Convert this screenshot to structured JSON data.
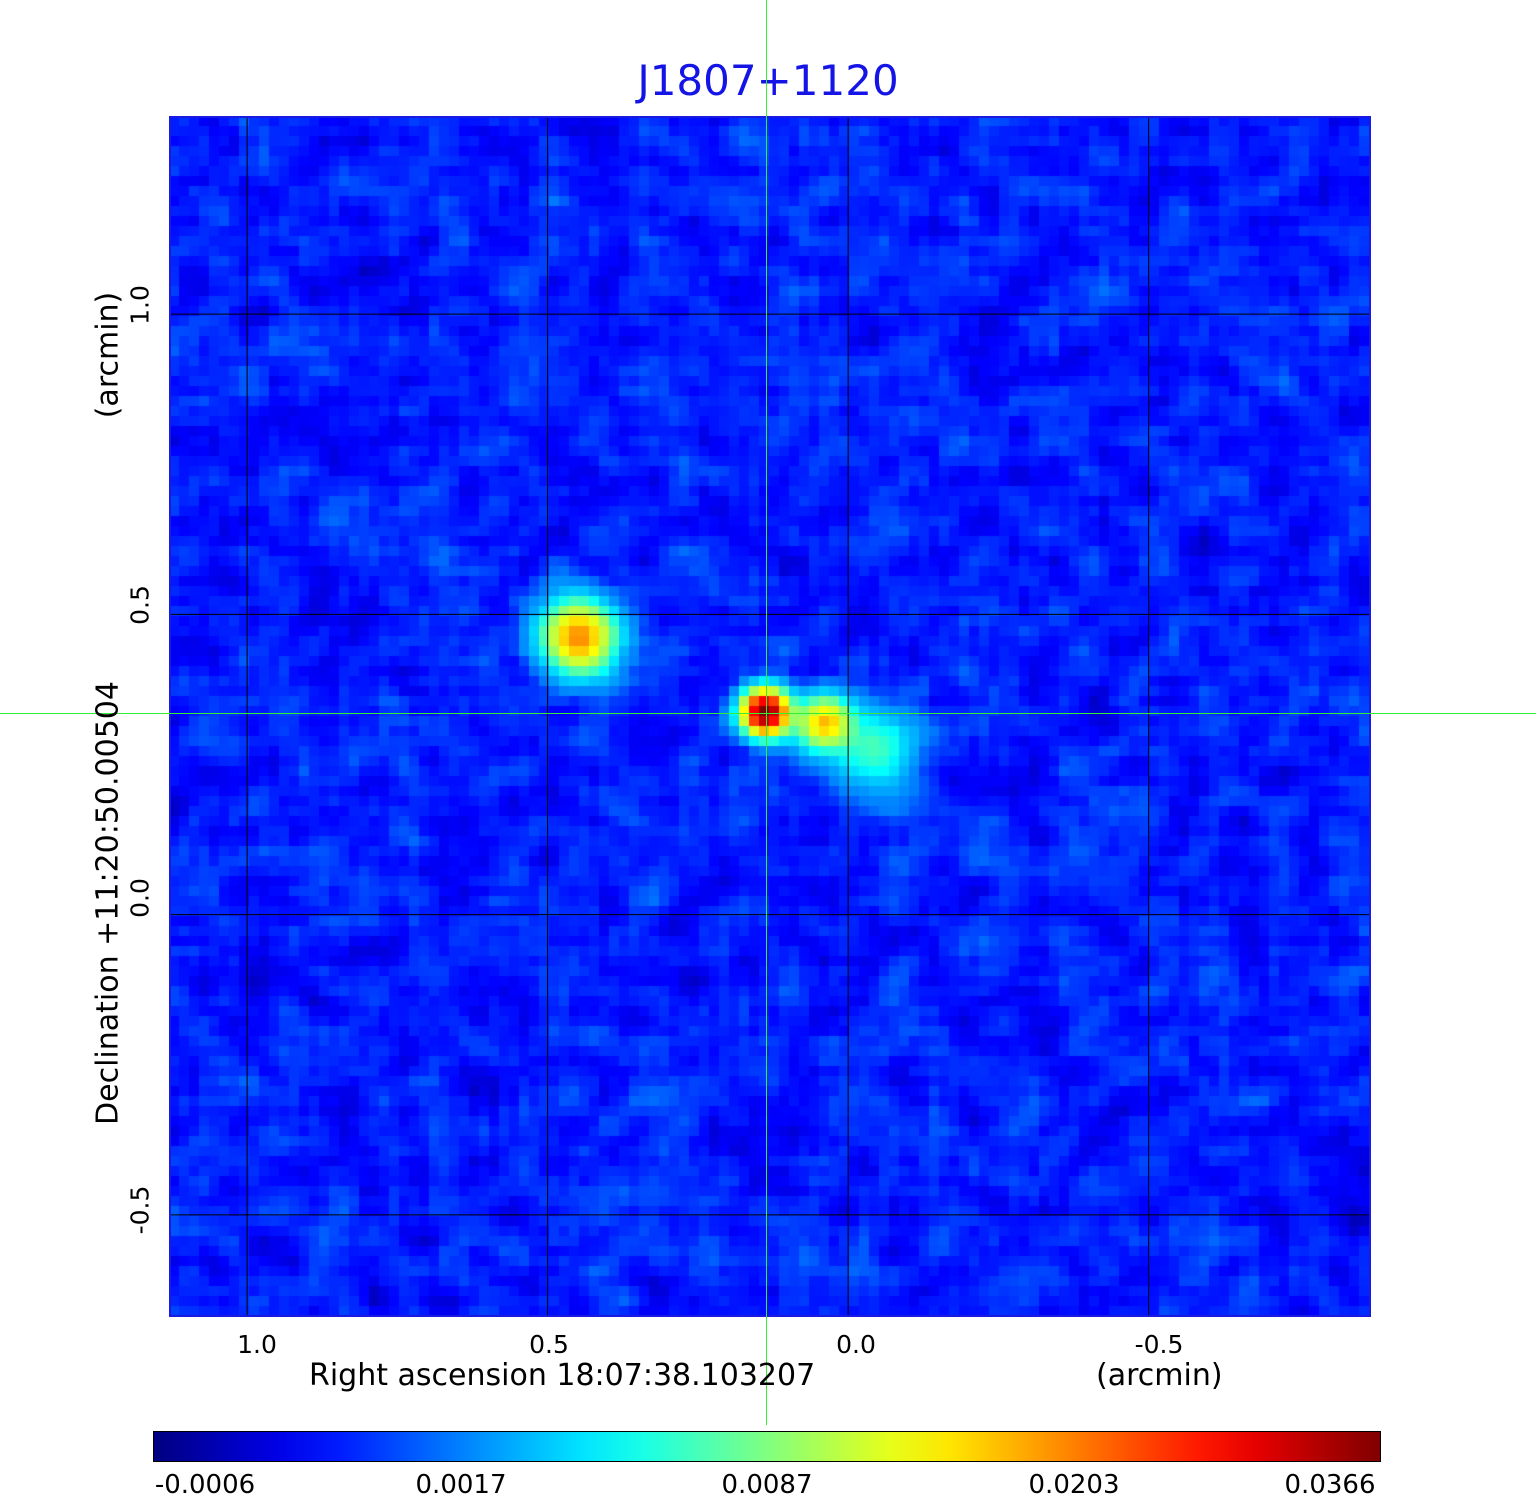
{
  "chart_data": {
    "type": "heatmap",
    "title": "J1807+1120",
    "xlabel": "Right ascension  18:07:38.103207",
    "xunit": "(arcmin)",
    "ylabel": "Declination  +11:20:50.00504",
    "yunit": "(arcmin)",
    "xlim": [
      1.13,
      -0.87
    ],
    "ylim": [
      -0.67,
      1.33
    ],
    "x_ticks": [
      1.0,
      0.5,
      0.0,
      -0.5
    ],
    "x_tick_labels": [
      "1.0",
      "0.5",
      "0.0",
      "-0.5"
    ],
    "y_ticks": [
      1.0,
      0.5,
      0.0,
      -0.5
    ],
    "y_tick_labels": [
      "1.0",
      "0.5",
      "0.0",
      "-0.5"
    ],
    "grid": true,
    "crosshair": {
      "x": 0.138,
      "y": 0.333,
      "color": "#33ee33"
    },
    "colormap": "jet",
    "colorbar": {
      "ticks": [
        -0.0006,
        0.0017,
        0.0087,
        0.0203,
        0.0366
      ],
      "tick_labels": [
        "-0.0006",
        "0.0017",
        "0.0087",
        "0.0203",
        "0.0366"
      ],
      "placement": "bottom"
    },
    "background_level": 0.0008,
    "background_noise": 0.0005,
    "sources": [
      {
        "x": 0.138,
        "y": 0.337,
        "peak": 0.0366,
        "width": 0.025
      },
      {
        "x": 0.448,
        "y": 0.462,
        "peak": 0.019,
        "width": 0.04
      },
      {
        "x": 0.04,
        "y": 0.32,
        "peak": 0.016,
        "width": 0.03
      },
      {
        "x": -0.045,
        "y": 0.275,
        "peak": 0.006,
        "width": 0.045
      }
    ]
  }
}
